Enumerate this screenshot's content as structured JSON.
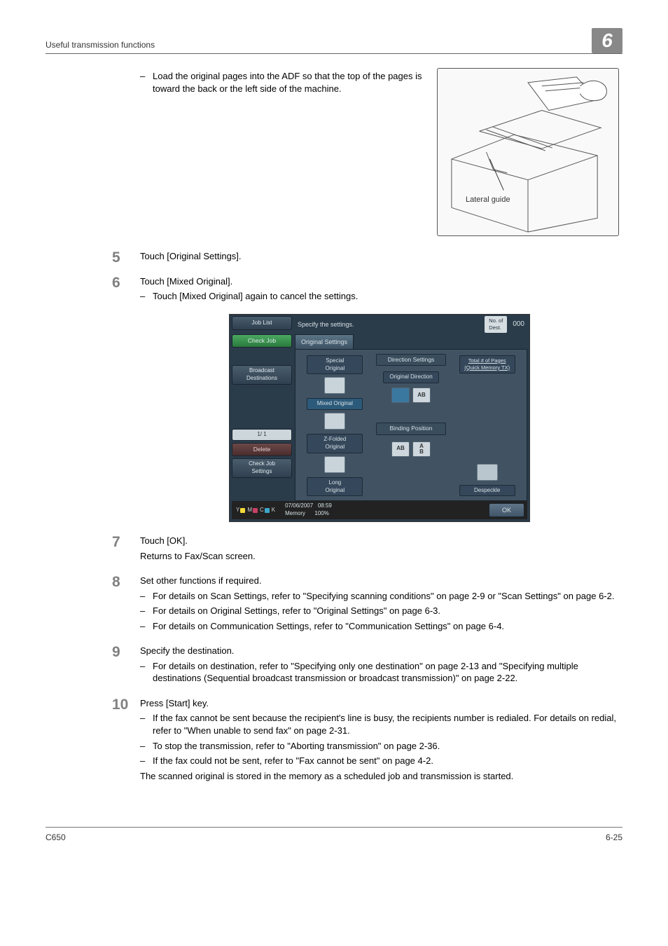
{
  "header": {
    "section_title": "Useful transmission functions",
    "chapter_number": "6"
  },
  "intro": {
    "bullet": "Load the original pages into the ADF so that the top of the pages is toward the back or the left side of the machine."
  },
  "adf_figure": {
    "lateral_guide_label": "Lateral guide"
  },
  "steps": [
    {
      "num": "5",
      "text": "Touch [Original Settings]."
    },
    {
      "num": "6",
      "text": "Touch [Mixed Original].",
      "subs": [
        "Touch [Mixed Original] again to cancel the settings."
      ]
    },
    {
      "num": "7",
      "text": "Touch [OK].",
      "note": "Returns to Fax/Scan screen."
    },
    {
      "num": "8",
      "text": "Set other functions if required.",
      "subs": [
        "For details on Scan Settings, refer to \"Specifying scanning conditions\" on page 2-9 or \"Scan Settings\" on page 6-2.",
        "For details on Original Settings, refer to \"Original Settings\" on page 6-3.",
        "For details on Communication Settings, refer to \"Communication Settings\" on page 6-4."
      ]
    },
    {
      "num": "9",
      "text": "Specify the destination.",
      "subs": [
        "For details on destination, refer to \"Specifying only one destination\" on page 2-13 and \"Specifying multiple destinations (Sequential broadcast transmission or broadcast transmission)\" on page 2-22."
      ]
    },
    {
      "num": "10",
      "text": "Press [Start] key.",
      "subs": [
        "If the fax cannot be sent because the recipient's line is busy, the recipients number is redialed. For details on redial, refer to \"When unable to send fax\" on page 2-31.",
        "To stop the transmission, refer to \"Aborting transmission\" on page 2-36.",
        "If the fax could not be sent, refer to \"Fax cannot be sent\" on page 4-2."
      ],
      "note": "The scanned original is stored in the memory as a scheduled job and transmission is started."
    }
  ],
  "lcd": {
    "job_list": "Job List",
    "check_job": "Check Job",
    "specify": "Specify the settings.",
    "dest_label": "No. of\nDest.",
    "dest_count": "000",
    "tab": "Original Settings",
    "broadcast": "Broadcast\nDestinations",
    "page_counter": "1/  1",
    "delete": "Delete",
    "check_settings": "Check Job\nSettings",
    "col1": {
      "special": "Special\nOriginal",
      "mixed": "Mixed Original",
      "zfolded": "Z-Folded\nOriginal",
      "long": "Long\nOriginal"
    },
    "col2": {
      "direction_settings": "Direction Settings",
      "original_direction": "Original Direction",
      "binding_position": "Binding Position",
      "ab1": "AB",
      "ab2": "A\nB"
    },
    "col3": {
      "total_pages": "Total # of Pages\n(Quick Memory TX)",
      "despeckle": "Despeckle"
    },
    "status_date": "07/06/2007",
    "status_time": "08:59",
    "status_mem": "Memory",
    "status_mempct": "100%",
    "ok": "OK",
    "toner_colors": [
      "#f3d93a",
      "#c83f64",
      "#3da7c8",
      "#222222"
    ],
    "toner_letters": [
      "Y",
      "M",
      "C",
      "K"
    ]
  },
  "footer": {
    "model": "C650",
    "page": "6-25"
  },
  "colors": {
    "chapter_bg": "#888888",
    "lcd_bg": "#2a3b4a",
    "lcd_panel": "#415362",
    "step_num": "#808080"
  }
}
